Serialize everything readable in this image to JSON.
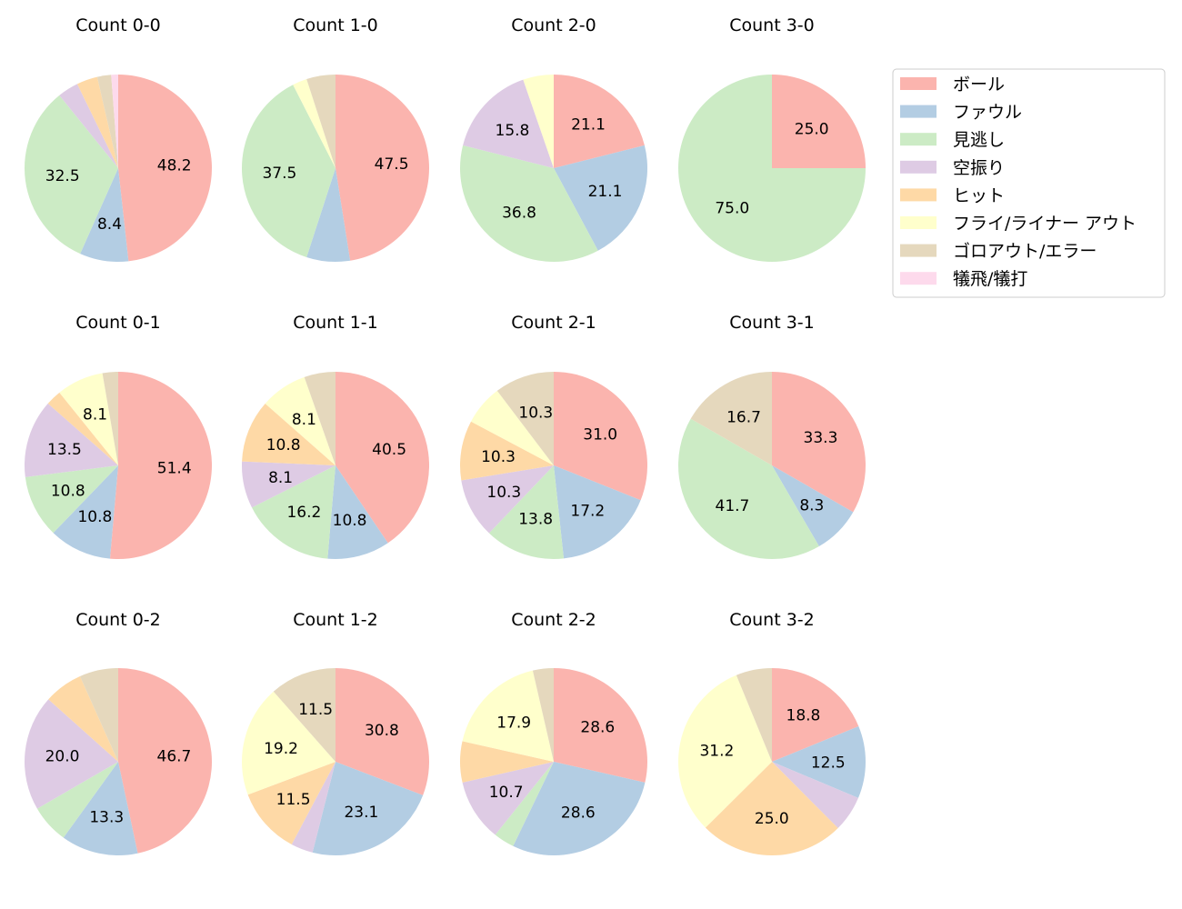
{
  "chart_data": {
    "type": "pie",
    "categories": [
      "ボール",
      "ファウル",
      "見逃し",
      "空振り",
      "ヒット",
      "フライ/ライナー アウト",
      "ゴロアウト/エラー",
      "犠飛/犠打"
    ],
    "colors": [
      "#fbb4ae",
      "#b3cde3",
      "#ccebc5",
      "#decbe4",
      "#fed9a6",
      "#ffffcc",
      "#e5d8bd",
      "#fddaec"
    ],
    "legend_position": "top-right",
    "start_angle": 90,
    "direction": "clockwise",
    "label_threshold_percent": 8,
    "charts": [
      {
        "title": "Count 0-0",
        "values": [
          48.2,
          8.4,
          32.5,
          3.6,
          3.6,
          0,
          2.4,
          1.2
        ]
      },
      {
        "title": "Count 1-0",
        "values": [
          47.5,
          7.5,
          37.5,
          0,
          0,
          2.5,
          5.0,
          0
        ]
      },
      {
        "title": "Count 2-0",
        "values": [
          21.1,
          21.1,
          36.8,
          15.8,
          0,
          5.3,
          0,
          0
        ]
      },
      {
        "title": "Count 3-0",
        "values": [
          25.0,
          0,
          75.0,
          0,
          0,
          0,
          0,
          0
        ]
      },
      {
        "title": "Count 0-1",
        "values": [
          51.4,
          10.8,
          10.8,
          13.5,
          2.7,
          8.1,
          2.7,
          0
        ]
      },
      {
        "title": "Count 1-1",
        "values": [
          40.5,
          10.8,
          16.2,
          8.1,
          10.8,
          8.1,
          5.4,
          0
        ]
      },
      {
        "title": "Count 2-1",
        "values": [
          31.0,
          17.2,
          13.8,
          10.3,
          10.3,
          6.9,
          10.3,
          0
        ]
      },
      {
        "title": "Count 3-1",
        "values": [
          33.3,
          8.3,
          41.7,
          0,
          0,
          0,
          16.7,
          0
        ]
      },
      {
        "title": "Count 0-2",
        "values": [
          46.7,
          13.3,
          6.7,
          20.0,
          6.7,
          0,
          6.7,
          0
        ]
      },
      {
        "title": "Count 1-2",
        "values": [
          30.8,
          23.1,
          0,
          3.8,
          11.5,
          19.2,
          11.5,
          0
        ]
      },
      {
        "title": "Count 2-2",
        "values": [
          28.6,
          28.6,
          3.6,
          10.7,
          7.1,
          17.9,
          3.6,
          0
        ]
      },
      {
        "title": "Count 3-2",
        "values": [
          18.8,
          12.5,
          0,
          6.2,
          25.0,
          31.2,
          6.2,
          0
        ]
      }
    ]
  }
}
